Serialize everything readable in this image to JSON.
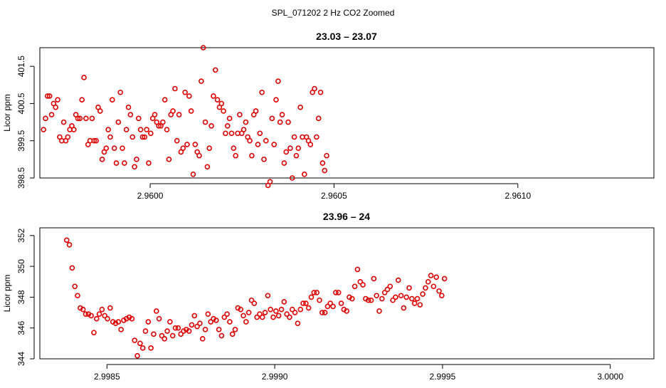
{
  "figure": {
    "title": "SPL_071202  2 Hz CO2 Zoomed"
  },
  "chart_data": [
    {
      "type": "scatter",
      "title": "23.03 – 23.07",
      "xlabel": "",
      "ylabel": "Licor ppm",
      "xlim": [
        2.9597,
        2.96137
      ],
      "ylim": [
        398.5,
        402.0
      ],
      "xticks": [
        2.96,
        2.9605,
        2.961
      ],
      "xtick_labels": [
        "2.9600",
        "2.9605",
        "2.9610"
      ],
      "yticks": [
        398.5,
        399.5,
        400.5,
        401.5
      ],
      "ytick_labels": [
        "398.5",
        "399.5",
        "400.5",
        "401.5"
      ],
      "marker_color": "#e00000",
      "x_start": 2.95971,
      "x_step": 5.5e-06,
      "values": [
        399.8,
        400.1,
        400.7,
        400.7,
        400.2,
        400.5,
        400.4,
        400.6,
        399.6,
        399.5,
        400.0,
        399.5,
        399.6,
        399.8,
        399.9,
        399.8,
        400.2,
        400.1,
        400.1,
        400.6,
        401.2,
        400.1,
        399.4,
        399.5,
        400.1,
        399.5,
        399.5,
        400.4,
        400.3,
        399.0,
        399.2,
        399.3,
        399.8,
        399.6,
        400.6,
        399.3,
        398.9,
        400.0,
        400.8,
        399.3,
        398.9,
        399.8,
        400.4,
        400.2,
        399.6,
        398.8,
        399.0,
        400.1,
        399.8,
        399.6,
        399.6,
        399.8,
        398.9,
        399.7,
        400.1,
        400.2,
        400.0,
        399.9,
        399.9,
        400.0,
        400.6,
        399.8,
        399.0,
        400.2,
        400.3,
        400.9,
        399.5,
        400.2,
        399.2,
        399.3,
        400.8,
        399.4,
        400.7,
        400.3,
        398.6,
        399.4,
        399.2,
        399.1,
        401.1,
        402.0,
        400.0,
        398.8,
        399.3,
        399.9,
        400.7,
        401.4,
        400.6,
        400.4,
        400.5,
        400.3,
        399.7,
        399.9,
        400.1,
        399.7,
        399.3,
        399.1,
        399.7,
        400.2,
        399.7,
        399.8,
        400.0,
        399.6,
        399.5,
        399.1,
        400.2,
        400.3,
        399.4,
        399.7,
        400.8,
        399.0,
        399.5,
        398.3,
        398.4,
        400.1,
        399.4,
        400.6,
        401.1,
        400.0,
        400.2,
        398.9,
        399.2,
        400.0,
        399.3,
        398.5,
        399.6,
        399.1,
        399.3,
        400.4,
        399.6,
        398.6,
        399.6,
        399.5,
        399.4,
        400.8,
        400.9,
        399.6,
        400.1,
        400.8,
        398.9,
        398.7,
        399.1
      ]
    },
    {
      "type": "scatter",
      "title": "23.96 – 24",
      "xlabel": "",
      "ylabel": "Licor ppm",
      "xlim": [
        2.9983,
        3.00013
      ],
      "ylim": [
        344,
        352.5
      ],
      "xticks": [
        2.9985,
        2.999,
        2.9995,
        3.0
      ],
      "xtick_labels": [
        "2.9985",
        "2.9990",
        "2.9995",
        "3.0000"
      ],
      "yticks": [
        344,
        346,
        348,
        350,
        352
      ],
      "ytick_labels": [
        "344",
        "346",
        "348",
        "350",
        "352"
      ],
      "marker_color": "#e00000",
      "x_start": 2.99838,
      "x_step": 8.1e-06,
      "values": [
        351.7,
        351.4,
        349.9,
        348.7,
        348.1,
        347.3,
        347.2,
        346.9,
        346.9,
        346.8,
        345.7,
        346.6,
        346.9,
        347.2,
        346.8,
        346.6,
        347.3,
        346.4,
        346.3,
        346.4,
        345.9,
        346.5,
        346.6,
        346.7,
        346.6,
        345.2,
        344.2,
        345.0,
        344.7,
        345.8,
        346.4,
        344.7,
        345.6,
        347.1,
        346.6,
        345.5,
        345.3,
        345.8,
        346.4,
        345.5,
        346.0,
        346.0,
        345.6,
        345.8,
        345.9,
        345.8,
        346.2,
        346.8,
        346.1,
        346.3,
        345.3,
        345.9,
        346.9,
        346.4,
        346.6,
        346.5,
        345.9,
        345.5,
        346.7,
        346.9,
        346.4,
        345.6,
        345.9,
        347.3,
        347.2,
        346.8,
        346.4,
        347.0,
        347.8,
        347.6,
        346.7,
        346.9,
        346.7,
        347.0,
        348.1,
        347.2,
        346.7,
        347.1,
        346.8,
        347.2,
        347.7,
        346.9,
        346.7,
        347.2,
        347.0,
        346.3,
        347.2,
        347.6,
        347.6,
        347.3,
        348.0,
        348.3,
        348.3,
        347.8,
        347.0,
        347.0,
        347.4,
        347.6,
        347.4,
        348.3,
        348.3,
        347.6,
        347.2,
        347.1,
        348.0,
        347.9,
        348.7,
        349.8,
        349.0,
        348.8,
        347.9,
        347.8,
        347.8,
        349.2,
        348.1,
        347.1,
        347.9,
        348.3,
        348.5,
        348.7,
        347.8,
        348.0,
        349.1,
        348.1,
        347.3,
        348.0,
        348.6,
        347.9,
        347.6,
        347.9,
        347.5,
        348.2,
        348.6,
        349.0,
        349.4,
        348.7,
        349.3,
        348.4,
        348.1,
        349.2
      ]
    }
  ]
}
